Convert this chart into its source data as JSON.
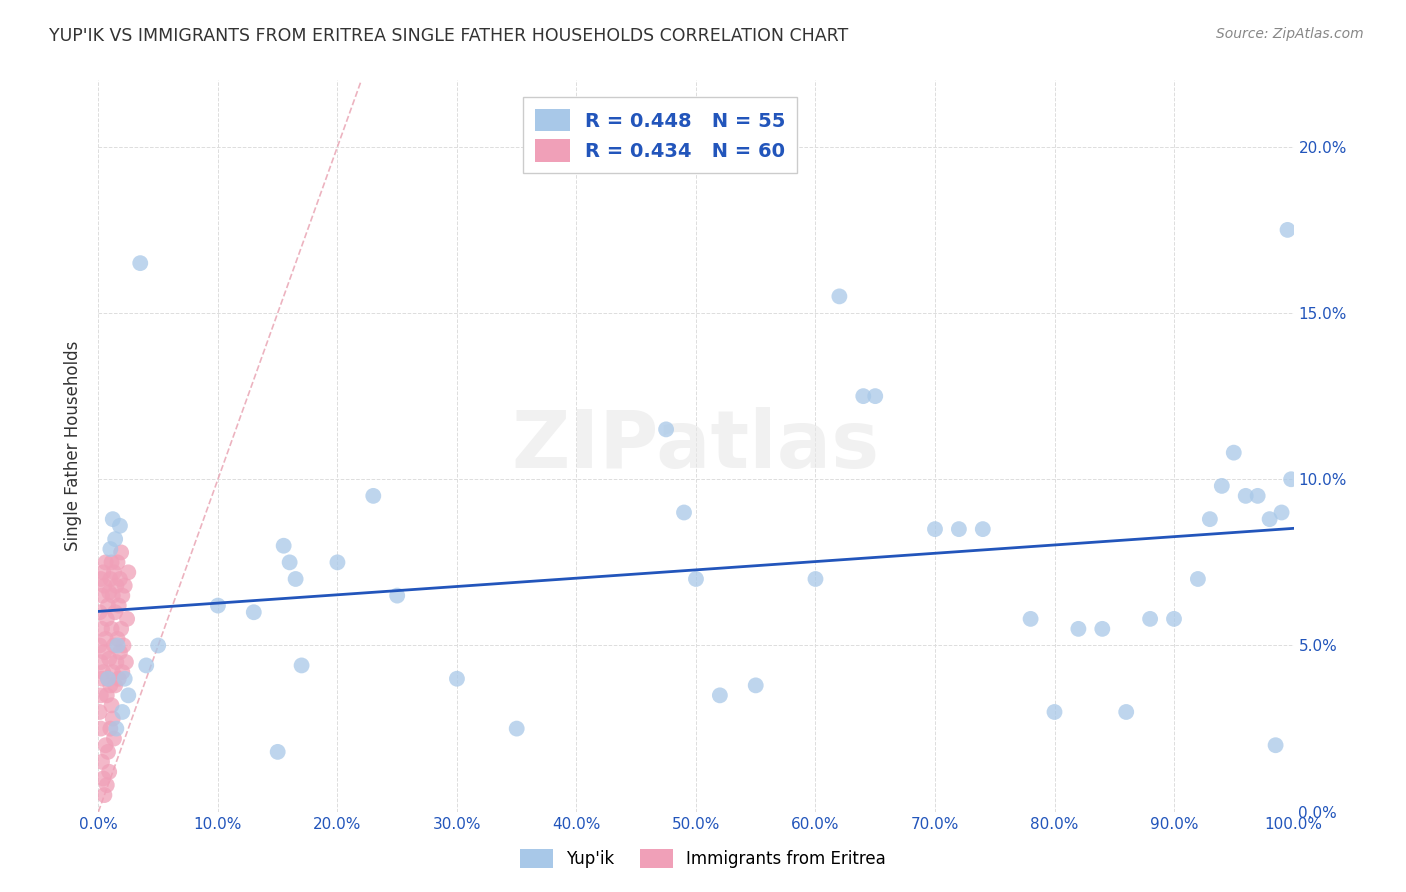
{
  "title": "YUP'IK VS IMMIGRANTS FROM ERITREA SINGLE FATHER HOUSEHOLDS CORRELATION CHART",
  "source": "Source: ZipAtlas.com",
  "ylabel": "Single Father Households",
  "series1_label": "Yup'ik",
  "series2_label": "Immigrants from Eritrea",
  "series1_color": "#a8c8e8",
  "series2_color": "#f0a0b8",
  "series1_R": 0.448,
  "series1_N": 55,
  "series2_R": 0.434,
  "series2_N": 60,
  "trend1_color": "#2255bb",
  "trend2_color": "#e07090",
  "diag_color": "#e8a0b0",
  "text_color": "#2255bb",
  "legend_text_color": "#2255bb",
  "xlim": [
    0.0,
    1.0
  ],
  "ylim": [
    0.0,
    0.22
  ],
  "background_color": "#ffffff",
  "grid_color": "#dddddd",
  "watermark": "ZIPatlas",
  "yupik_x": [
    0.012,
    0.018,
    0.014,
    0.01,
    0.008,
    0.022,
    0.016,
    0.13,
    0.155,
    0.16,
    0.165,
    0.17,
    0.23,
    0.475,
    0.49,
    0.5,
    0.52,
    0.55,
    0.6,
    0.62,
    0.64,
    0.65,
    0.7,
    0.72,
    0.74,
    0.78,
    0.8,
    0.82,
    0.84,
    0.86,
    0.88,
    0.9,
    0.92,
    0.93,
    0.94,
    0.95,
    0.96,
    0.97,
    0.98,
    0.985,
    0.99,
    0.995,
    0.998,
    0.35,
    0.3,
    0.25,
    0.2,
    0.15,
    0.1,
    0.05,
    0.04,
    0.035,
    0.025,
    0.02,
    0.015
  ],
  "yupik_y": [
    0.088,
    0.086,
    0.082,
    0.079,
    0.04,
    0.04,
    0.05,
    0.06,
    0.08,
    0.075,
    0.07,
    0.044,
    0.095,
    0.115,
    0.09,
    0.07,
    0.035,
    0.038,
    0.07,
    0.155,
    0.125,
    0.125,
    0.085,
    0.085,
    0.085,
    0.058,
    0.03,
    0.055,
    0.055,
    0.03,
    0.058,
    0.058,
    0.07,
    0.088,
    0.098,
    0.108,
    0.095,
    0.095,
    0.088,
    0.02,
    0.09,
    0.175,
    0.1,
    0.025,
    0.04,
    0.065,
    0.075,
    0.018,
    0.062,
    0.05,
    0.044,
    0.165,
    0.035,
    0.03,
    0.025
  ],
  "eritrea_x": [
    0.001,
    0.001,
    0.002,
    0.002,
    0.003,
    0.003,
    0.004,
    0.004,
    0.005,
    0.005,
    0.006,
    0.006,
    0.007,
    0.007,
    0.008,
    0.008,
    0.009,
    0.009,
    0.01,
    0.01,
    0.011,
    0.011,
    0.012,
    0.012,
    0.013,
    0.013,
    0.014,
    0.014,
    0.015,
    0.015,
    0.016,
    0.016,
    0.017,
    0.017,
    0.018,
    0.018,
    0.019,
    0.019,
    0.02,
    0.02,
    0.021,
    0.022,
    0.023,
    0.024,
    0.025,
    0.001,
    0.002,
    0.003,
    0.004,
    0.005,
    0.006,
    0.007,
    0.008,
    0.009,
    0.01,
    0.011,
    0.012,
    0.013,
    0.002,
    0.003
  ],
  "eritrea_y": [
    0.05,
    0.06,
    0.045,
    0.07,
    0.055,
    0.065,
    0.042,
    0.072,
    0.048,
    0.068,
    0.052,
    0.075,
    0.035,
    0.058,
    0.04,
    0.062,
    0.046,
    0.066,
    0.038,
    0.07,
    0.055,
    0.075,
    0.042,
    0.065,
    0.05,
    0.072,
    0.038,
    0.06,
    0.045,
    0.068,
    0.052,
    0.075,
    0.04,
    0.062,
    0.048,
    0.07,
    0.055,
    0.078,
    0.042,
    0.065,
    0.05,
    0.068,
    0.045,
    0.058,
    0.072,
    0.03,
    0.025,
    0.015,
    0.01,
    0.005,
    0.02,
    0.008,
    0.018,
    0.012,
    0.025,
    0.032,
    0.028,
    0.022,
    0.035,
    0.04
  ]
}
